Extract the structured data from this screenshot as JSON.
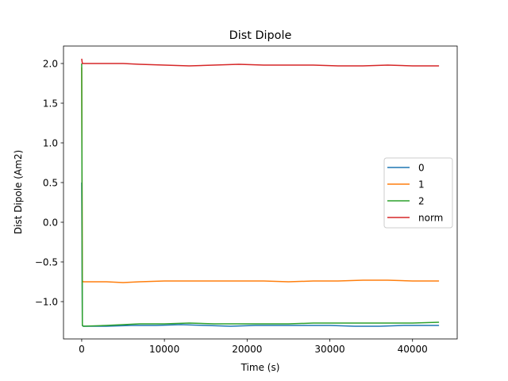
{
  "chart_data": {
    "type": "line",
    "title": "Dist Dipole",
    "xlabel": "Time (s)",
    "ylabel": "Dist Dipole (Am2)",
    "xlim": [
      -2200,
      45400
    ],
    "ylim": [
      -1.47,
      2.22
    ],
    "xticks": [
      0,
      10000,
      20000,
      30000,
      40000
    ],
    "xtick_labels": [
      "0",
      "10000",
      "20000",
      "30000",
      "40000"
    ],
    "yticks": [
      -1.0,
      -0.5,
      0.0,
      0.5,
      1.0,
      1.5,
      2.0
    ],
    "ytick_labels": [
      "−1.0",
      "−0.5",
      "0.0",
      "0.5",
      "1.0",
      "1.5",
      "2.0"
    ],
    "grid": false,
    "legend_position": "center-right",
    "series": [
      {
        "name": "0",
        "color": "#1f77b4",
        "x": [
          0,
          80,
          200,
          3000,
          6000,
          9000,
          12000,
          15000,
          18000,
          21000,
          24000,
          27000,
          30000,
          33000,
          36000,
          39000,
          42000,
          43200
        ],
        "y": [
          0.5,
          -1.3,
          -1.31,
          -1.31,
          -1.3,
          -1.3,
          -1.29,
          -1.3,
          -1.31,
          -1.3,
          -1.3,
          -1.3,
          -1.3,
          -1.31,
          -1.31,
          -1.3,
          -1.3,
          -1.3
        ]
      },
      {
        "name": "1",
        "color": "#ff7f0e",
        "x": [
          0,
          80,
          200,
          3000,
          5000,
          7000,
          10000,
          13000,
          16000,
          19000,
          22000,
          25000,
          28000,
          31000,
          34000,
          37000,
          40000,
          43200
        ],
        "y": [
          1.95,
          -0.74,
          -0.75,
          -0.75,
          -0.76,
          -0.75,
          -0.74,
          -0.74,
          -0.74,
          -0.74,
          -0.74,
          -0.75,
          -0.74,
          -0.74,
          -0.73,
          -0.73,
          -0.74,
          -0.74
        ]
      },
      {
        "name": "2",
        "color": "#2ca02c",
        "x": [
          0,
          80,
          200,
          3000,
          5000,
          7000,
          10000,
          13000,
          16000,
          19000,
          22000,
          25000,
          28000,
          31000,
          34000,
          37000,
          40000,
          43200
        ],
        "y": [
          2.0,
          -1.3,
          -1.31,
          -1.3,
          -1.29,
          -1.28,
          -1.28,
          -1.27,
          -1.28,
          -1.28,
          -1.28,
          -1.28,
          -1.27,
          -1.27,
          -1.27,
          -1.27,
          -1.27,
          -1.26
        ]
      },
      {
        "name": "norm",
        "color": "#d62728",
        "x": [
          0,
          80,
          200,
          3000,
          5000,
          7000,
          10000,
          13000,
          16000,
          19000,
          22000,
          25000,
          28000,
          31000,
          34000,
          37000,
          40000,
          43200
        ],
        "y": [
          2.06,
          2.0,
          2.0,
          2.0,
          2.0,
          1.99,
          1.98,
          1.97,
          1.98,
          1.99,
          1.98,
          1.98,
          1.98,
          1.97,
          1.97,
          1.98,
          1.97,
          1.97
        ]
      }
    ]
  }
}
